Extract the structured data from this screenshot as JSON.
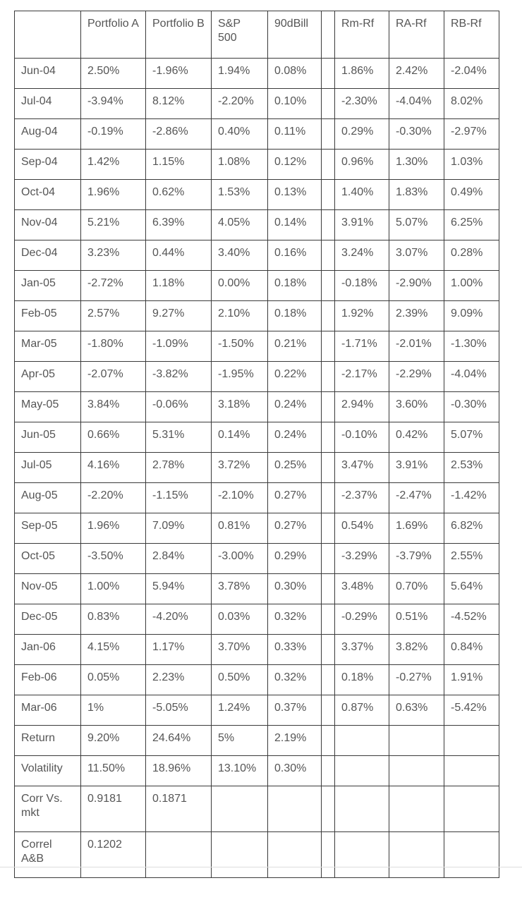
{
  "table": {
    "headers": [
      "",
      "Portfolio A",
      "Portfolio B",
      "S&P 500",
      "90dBill",
      "",
      "Rm-Rf",
      "RA-Rf",
      "RB-Rf"
    ],
    "rows": [
      [
        "Jun-04",
        "2.50%",
        "-1.96%",
        "1.94%",
        "0.08%",
        "",
        "1.86%",
        "2.42%",
        "-2.04%"
      ],
      [
        "Jul-04",
        "-3.94%",
        "8.12%",
        "-2.20%",
        "0.10%",
        "",
        "-2.30%",
        "-4.04%",
        "8.02%"
      ],
      [
        "Aug-04",
        "-0.19%",
        "-2.86%",
        "0.40%",
        "0.11%",
        "",
        "0.29%",
        "-0.30%",
        "-2.97%"
      ],
      [
        "Sep-04",
        "1.42%",
        "1.15%",
        "1.08%",
        "0.12%",
        "",
        "0.96%",
        "1.30%",
        "1.03%"
      ],
      [
        "Oct-04",
        "1.96%",
        "0.62%",
        "1.53%",
        "0.13%",
        "",
        "1.40%",
        "1.83%",
        "0.49%"
      ],
      [
        "Nov-04",
        "5.21%",
        "6.39%",
        "4.05%",
        "0.14%",
        "",
        "3.91%",
        "5.07%",
        "6.25%"
      ],
      [
        "Dec-04",
        "3.23%",
        "0.44%",
        "3.40%",
        "0.16%",
        "",
        "3.24%",
        "3.07%",
        "0.28%"
      ],
      [
        "Jan-05",
        "-2.72%",
        "1.18%",
        "0.00%",
        "0.18%",
        "",
        "-0.18%",
        "-2.90%",
        "1.00%"
      ],
      [
        "Feb-05",
        "2.57%",
        "9.27%",
        "2.10%",
        "0.18%",
        "",
        "1.92%",
        "2.39%",
        "9.09%"
      ],
      [
        "Mar-05",
        "-1.80%",
        "-1.09%",
        "-1.50%",
        "0.21%",
        "",
        "-1.71%",
        "-2.01%",
        "-1.30%"
      ],
      [
        "Apr-05",
        "-2.07%",
        "-3.82%",
        "-1.95%",
        "0.22%",
        "",
        "-2.17%",
        "-2.29%",
        "-4.04%"
      ],
      [
        "May-05",
        "3.84%",
        "-0.06%",
        "3.18%",
        "0.24%",
        "",
        "2.94%",
        "3.60%",
        "-0.30%"
      ],
      [
        "Jun-05",
        "0.66%",
        "5.31%",
        "0.14%",
        "0.24%",
        "",
        "-0.10%",
        "0.42%",
        "5.07%"
      ],
      [
        "Jul-05",
        "4.16%",
        "2.78%",
        "3.72%",
        "0.25%",
        "",
        "3.47%",
        "3.91%",
        "2.53%"
      ],
      [
        "Aug-05",
        "-2.20%",
        "-1.15%",
        "-2.10%",
        "0.27%",
        "",
        "-2.37%",
        "-2.47%",
        "-1.42%"
      ],
      [
        "Sep-05",
        "1.96%",
        "7.09%",
        "0.81%",
        "0.27%",
        "",
        "0.54%",
        "1.69%",
        "6.82%"
      ],
      [
        "Oct-05",
        "-3.50%",
        "2.84%",
        "-3.00%",
        "0.29%",
        "",
        "-3.29%",
        "-3.79%",
        "2.55%"
      ],
      [
        "Nov-05",
        "1.00%",
        "5.94%",
        "3.78%",
        "0.30%",
        "",
        "3.48%",
        "0.70%",
        "5.64%"
      ],
      [
        "Dec-05",
        "0.83%",
        "-4.20%",
        "0.03%",
        "0.32%",
        "",
        "-0.29%",
        "0.51%",
        "-4.52%"
      ],
      [
        "Jan-06",
        "4.15%",
        "1.17%",
        "3.70%",
        "0.33%",
        "",
        "3.37%",
        "3.82%",
        "0.84%"
      ],
      [
        "Feb-06",
        "0.05%",
        "2.23%",
        "0.50%",
        "0.32%",
        "",
        "0.18%",
        "-0.27%",
        "1.91%"
      ],
      [
        "Mar-06",
        "1%",
        "-5.05%",
        "1.24%",
        "0.37%",
        "",
        "0.87%",
        "0.63%",
        "-5.42%"
      ],
      [
        "Return",
        "9.20%",
        "24.64%",
        "5%",
        "2.19%",
        "",
        "",
        "",
        ""
      ],
      [
        "Volatility",
        "11.50%",
        "18.96%",
        "13.10%",
        "0.30%",
        "",
        "",
        "",
        ""
      ],
      [
        "Corr Vs. mkt",
        "0.9181",
        "0.1871",
        "",
        "",
        "",
        "",
        "",
        ""
      ],
      [
        "Correl A&B",
        "0.1202",
        "",
        "",
        "",
        "",
        "",
        "",
        ""
      ]
    ]
  }
}
